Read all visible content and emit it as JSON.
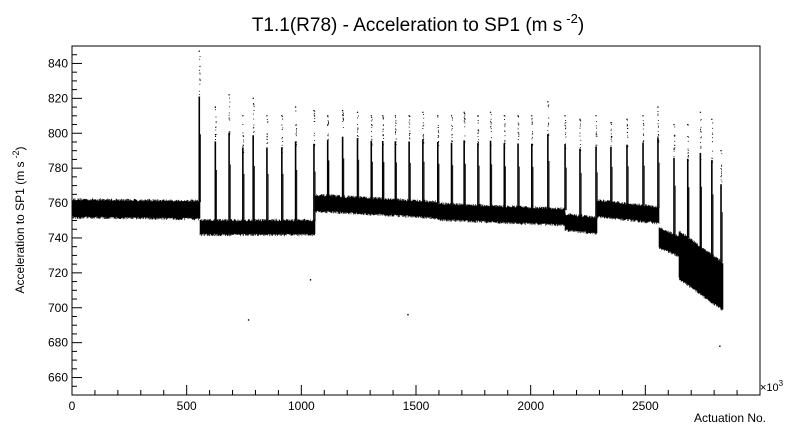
{
  "chart_data": {
    "type": "scatter",
    "title": "T1.1(R78) - Acceleration to SP1 (m s",
    "title_exponent": "-2",
    "title_close": ")",
    "xlabel": "Actuation No.",
    "ylabel": "Acceleration to SP1 (m s",
    "ylabel_exponent": "-2",
    "ylabel_close": ")",
    "x_multiplier_label": "×10",
    "x_multiplier_exponent": "3",
    "xlim": [
      0,
      3000
    ],
    "ylim": [
      650,
      850
    ],
    "x_ticks": [
      0,
      500,
      1000,
      1500,
      2000,
      2500
    ],
    "y_ticks": [
      660,
      680,
      700,
      720,
      740,
      760,
      780,
      800,
      820,
      840
    ],
    "grid": false,
    "marker_color": "#000000",
    "segments": [
      {
        "x": [
          0,
          560
        ],
        "y_center_start": 757,
        "y_center_end": 756,
        "spread": 9
      },
      {
        "x": [
          560,
          1060
        ],
        "y_center_start": 746,
        "y_center_end": 746,
        "spread": 7
      },
      {
        "x": [
          1060,
          1600
        ],
        "y_center_start": 760,
        "y_center_end": 756,
        "spread": 8
      },
      {
        "x": [
          1600,
          2150
        ],
        "y_center_start": 755,
        "y_center_end": 752,
        "spread": 8
      },
      {
        "x": [
          2150,
          2290
        ],
        "y_center_start": 749,
        "y_center_end": 747,
        "spread": 8
      },
      {
        "x": [
          2290,
          2560
        ],
        "y_center_start": 757,
        "y_center_end": 753,
        "spread": 8
      },
      {
        "x": [
          2560,
          2650
        ],
        "y_center_start": 740,
        "y_center_end": 735,
        "spread": 10
      },
      {
        "x": [
          2650,
          2840
        ],
        "y_center_start": 730,
        "y_center_end": 712,
        "spread": 26
      }
    ],
    "spikes": [
      {
        "x": 555,
        "y": 847
      },
      {
        "x": 625,
        "y": 815
      },
      {
        "x": 685,
        "y": 822
      },
      {
        "x": 745,
        "y": 810
      },
      {
        "x": 790,
        "y": 820
      },
      {
        "x": 850,
        "y": 810
      },
      {
        "x": 915,
        "y": 810
      },
      {
        "x": 975,
        "y": 815
      },
      {
        "x": 1055,
        "y": 813
      },
      {
        "x": 1115,
        "y": 810
      },
      {
        "x": 1180,
        "y": 813
      },
      {
        "x": 1245,
        "y": 812
      },
      {
        "x": 1305,
        "y": 810
      },
      {
        "x": 1355,
        "y": 810
      },
      {
        "x": 1410,
        "y": 810
      },
      {
        "x": 1470,
        "y": 810
      },
      {
        "x": 1530,
        "y": 812
      },
      {
        "x": 1595,
        "y": 810
      },
      {
        "x": 1655,
        "y": 810
      },
      {
        "x": 1710,
        "y": 812
      },
      {
        "x": 1770,
        "y": 810
      },
      {
        "x": 1825,
        "y": 812
      },
      {
        "x": 1885,
        "y": 810
      },
      {
        "x": 1945,
        "y": 810
      },
      {
        "x": 2005,
        "y": 810
      },
      {
        "x": 2075,
        "y": 818
      },
      {
        "x": 2150,
        "y": 810
      },
      {
        "x": 2215,
        "y": 808
      },
      {
        "x": 2285,
        "y": 810
      },
      {
        "x": 2350,
        "y": 806
      },
      {
        "x": 2420,
        "y": 808
      },
      {
        "x": 2490,
        "y": 810
      },
      {
        "x": 2555,
        "y": 815
      },
      {
        "x": 2625,
        "y": 805
      },
      {
        "x": 2685,
        "y": 805
      },
      {
        "x": 2740,
        "y": 812
      },
      {
        "x": 2790,
        "y": 808
      },
      {
        "x": 2830,
        "y": 790
      }
    ],
    "outliers": [
      {
        "x": 770,
        "y": 693
      },
      {
        "x": 1040,
        "y": 716
      },
      {
        "x": 1465,
        "y": 696
      },
      {
        "x": 2825,
        "y": 678
      }
    ]
  }
}
